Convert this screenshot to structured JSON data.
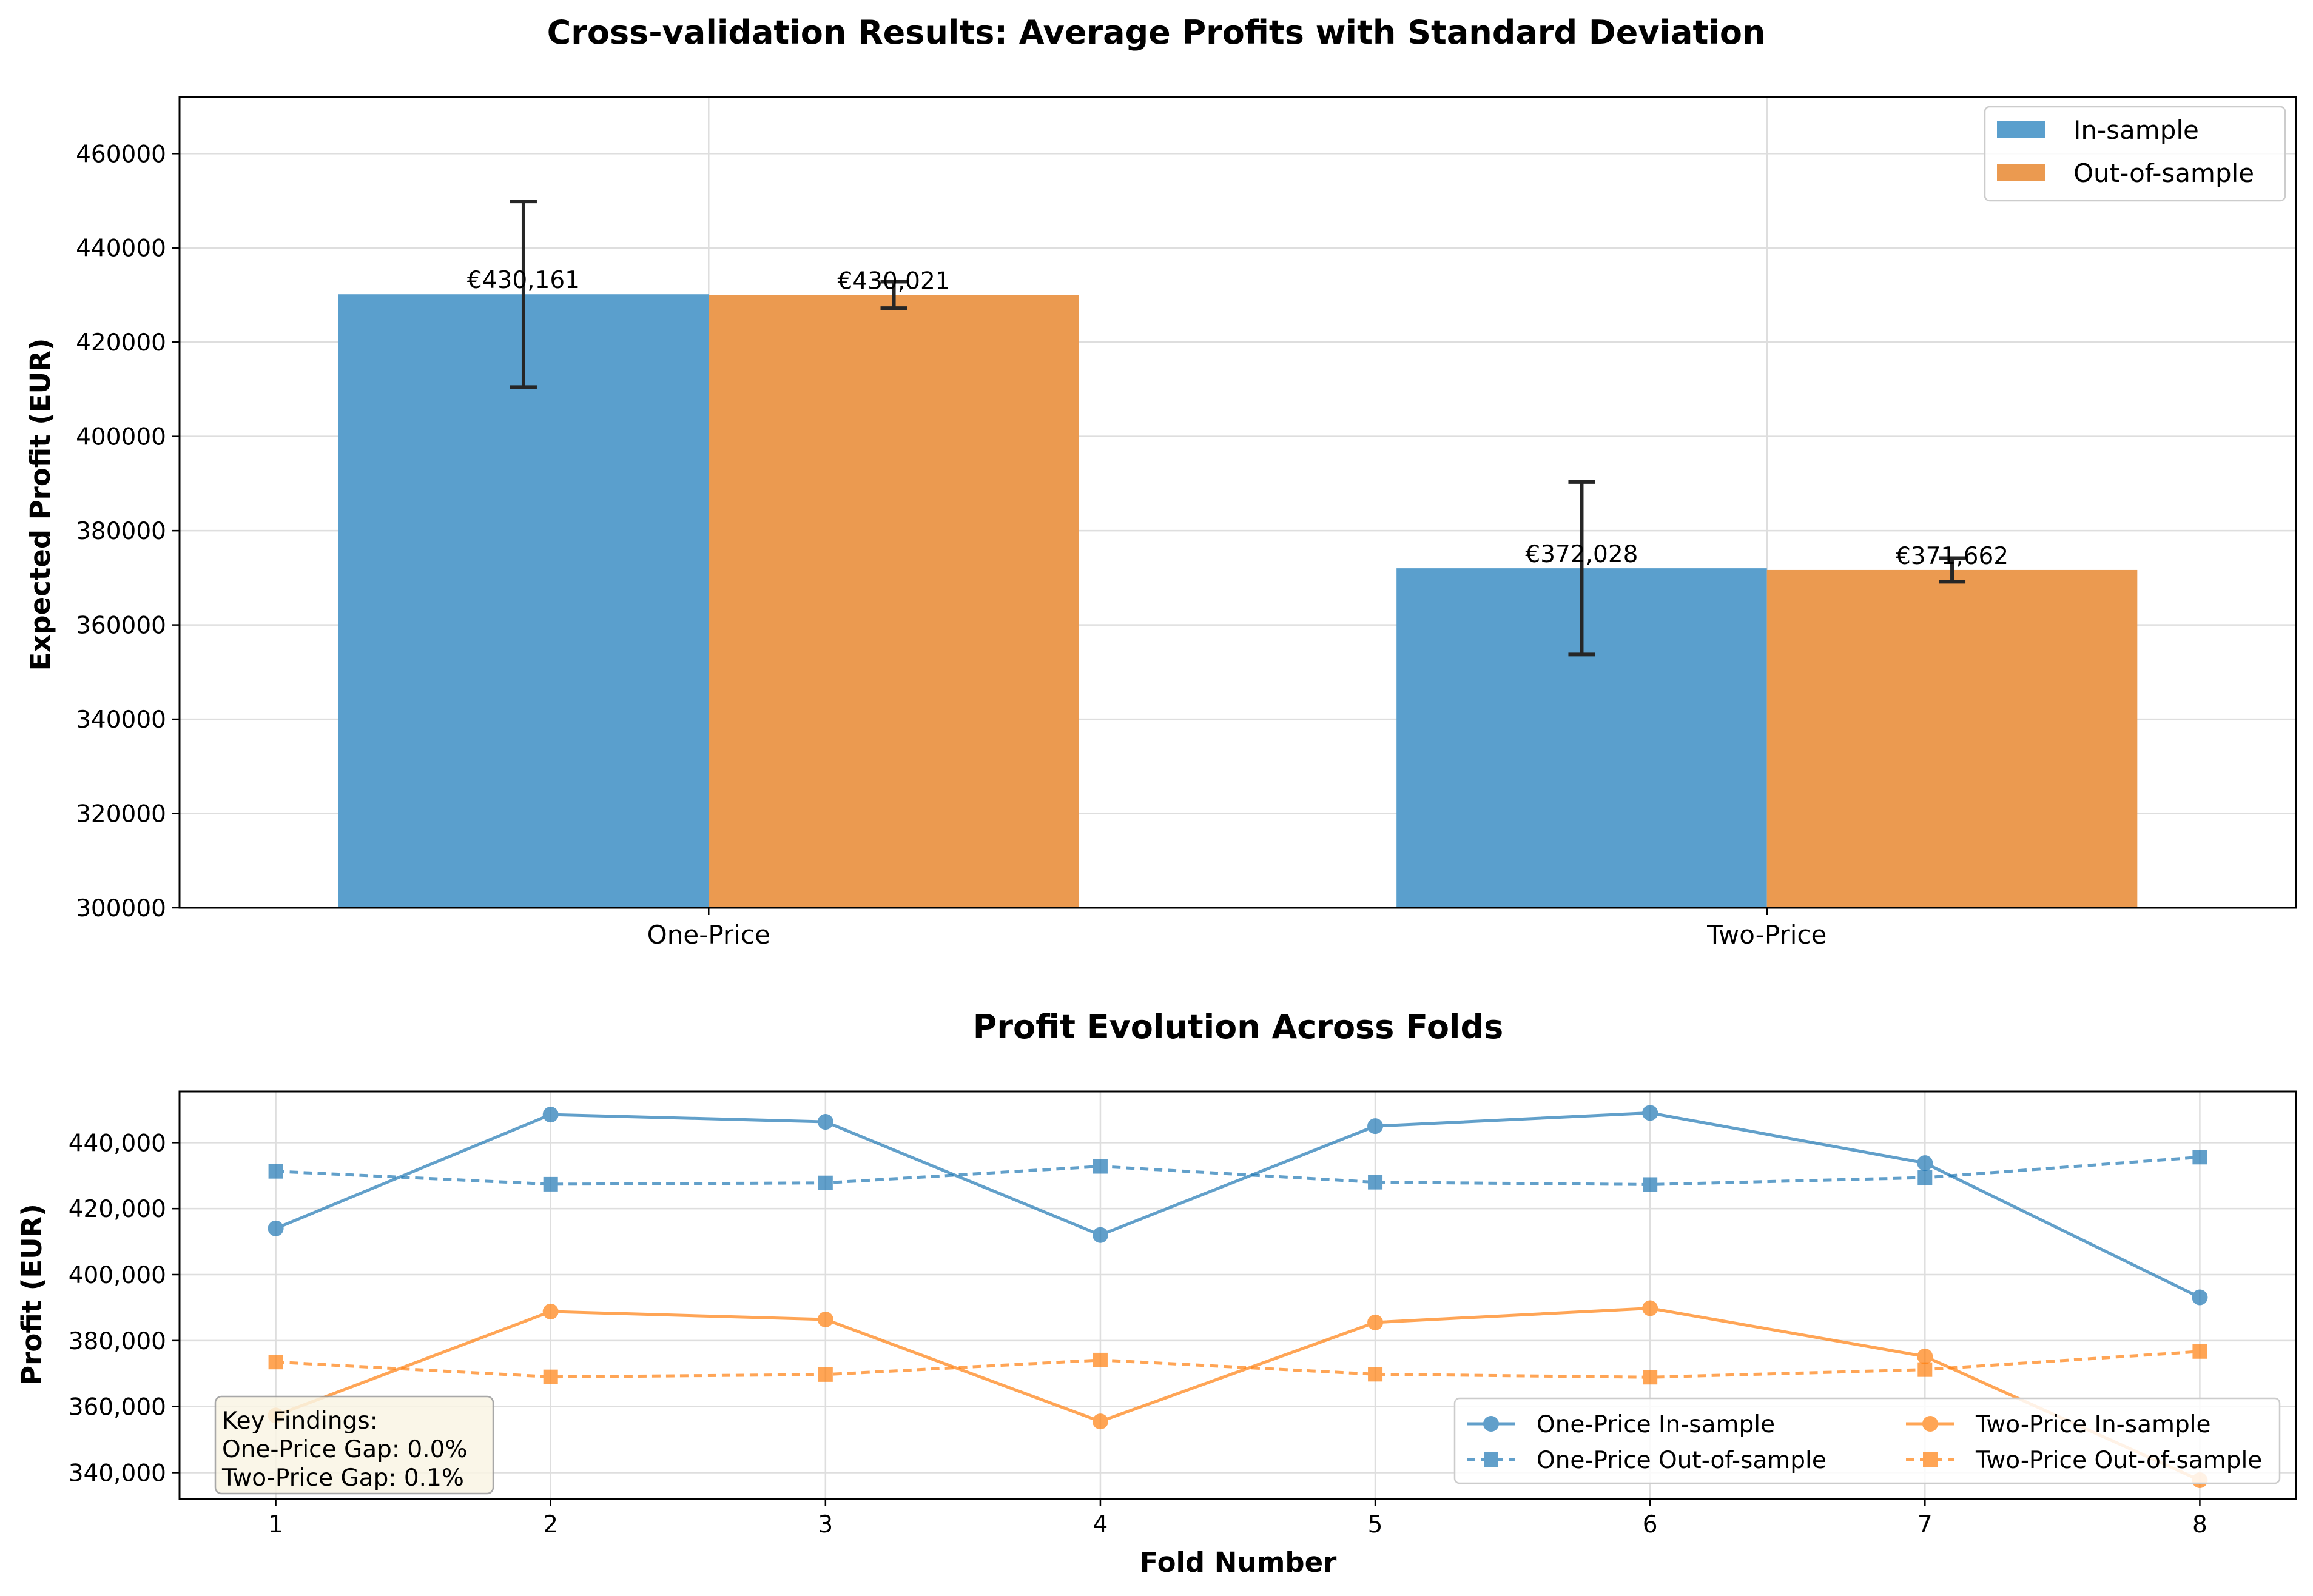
{
  "colors": {
    "in_sample": "#5a9fcd",
    "out_sample": "#eb9a50",
    "blue_line": "#1f77b4",
    "orange_line": "#ff7f0e",
    "errorbar": "#262626",
    "grid": "#dedede",
    "findings_bg": "#faf5e4",
    "findings_border": "#9a9a9a"
  },
  "chart_data": [
    {
      "type": "bar",
      "title": "Cross-validation Results: Average Profits with Standard Deviation",
      "xlabel": "",
      "ylabel": "Expected Profit (EUR)",
      "categories": [
        "One-Price",
        "Two-Price"
      ],
      "ylim": [
        300000,
        472000
      ],
      "yticks": [
        300000,
        320000,
        340000,
        360000,
        380000,
        400000,
        420000,
        440000,
        460000
      ],
      "ytick_labels": [
        "300000",
        "320000",
        "340000",
        "360000",
        "380000",
        "400000",
        "420000",
        "440000",
        "460000"
      ],
      "grid": true,
      "legend_position": "top-right",
      "series": [
        {
          "name": "In-sample",
          "values": [
            430161,
            372028
          ],
          "std": [
            19700,
            18300
          ],
          "labels": [
            "€430,161",
            "€372,028"
          ]
        },
        {
          "name": "Out-of-sample",
          "values": [
            430021,
            371662
          ],
          "std": [
            2800,
            2500
          ],
          "labels": [
            "€430,021",
            "€371,662"
          ]
        }
      ]
    },
    {
      "type": "line",
      "title": "Profit Evolution Across Folds",
      "xlabel": "Fold Number",
      "ylabel": "Profit (EUR)",
      "x": [
        1,
        2,
        3,
        4,
        5,
        6,
        7,
        8
      ],
      "xlim": [
        0.65,
        8.35
      ],
      "ylim": [
        332000,
        455500
      ],
      "yticks": [
        340000,
        360000,
        380000,
        400000,
        420000,
        440000
      ],
      "ytick_labels": [
        "340,000",
        "360,000",
        "380,000",
        "400,000",
        "420,000",
        "440,000"
      ],
      "grid": true,
      "legend_position": "bottom-right",
      "series": [
        {
          "name": "One-Price In-sample",
          "values": [
            414000,
            448500,
            446300,
            412000,
            445000,
            449000,
            433800,
            393100
          ]
        },
        {
          "name": "One-Price Out-of-sample",
          "values": [
            431300,
            427400,
            427800,
            432800,
            428000,
            427300,
            429400,
            435600
          ]
        },
        {
          "name": "Two-Price In-sample",
          "values": [
            357300,
            388800,
            386400,
            355500,
            385500,
            389800,
            375200,
            337700
          ]
        },
        {
          "name": "Two-Price Out-of-sample",
          "values": [
            373500,
            369000,
            369700,
            374100,
            369800,
            368900,
            371200,
            376700
          ]
        }
      ],
      "annotation": {
        "lines": [
          "Key Findings:",
          "One-Price Gap: 0.0%",
          "Two-Price Gap: 0.1%"
        ],
        "position": "bottom-left"
      }
    }
  ]
}
